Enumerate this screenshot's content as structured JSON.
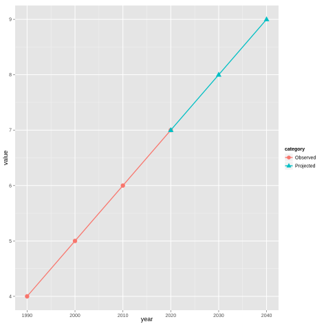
{
  "chart_data": {
    "type": "line",
    "xlabel": "year",
    "ylabel": "value",
    "xlim": [
      1987.5,
      2042.5
    ],
    "ylim": [
      3.75,
      9.25
    ],
    "x_ticks": [
      1990,
      2000,
      2010,
      2020,
      2030,
      2040
    ],
    "y_ticks": [
      4,
      5,
      6,
      7,
      8,
      9
    ],
    "grid": true,
    "legend": {
      "title": "category",
      "placement": "right"
    },
    "series": [
      {
        "name": "Observed",
        "color": "#f8766d",
        "marker": "circle",
        "x": [
          1990,
          2000,
          2010,
          2020
        ],
        "y": [
          4,
          5,
          6,
          7
        ]
      },
      {
        "name": "Projected",
        "color": "#00bfc4",
        "marker": "triangle",
        "x": [
          2020,
          2030,
          2040
        ],
        "y": [
          7,
          8,
          9
        ]
      }
    ]
  }
}
